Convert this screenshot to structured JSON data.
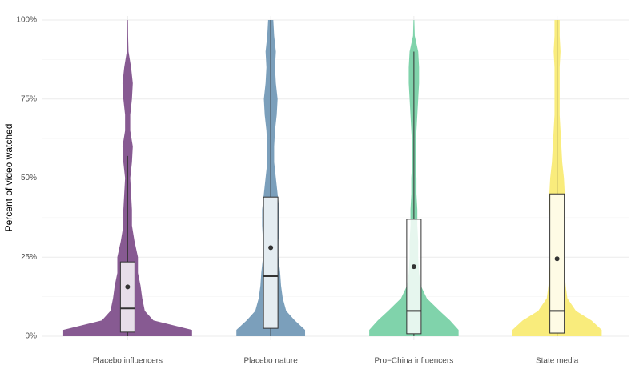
{
  "chart_data": {
    "type": "violin",
    "y_label": "Percent of video watched",
    "categories": [
      "Placebo influencers",
      "Placebo nature",
      "Pro−China influencers",
      "State media"
    ],
    "ylim": [
      0,
      100
    ],
    "yticks": [
      {
        "value": 0,
        "label": "0%"
      },
      {
        "value": 25,
        "label": "25%"
      },
      {
        "value": 50,
        "label": "50%"
      },
      {
        "value": 75,
        "label": "75%"
      },
      {
        "value": 100,
        "label": "100%"
      }
    ],
    "minor_yticks": [
      12.5,
      37.5,
      62.5,
      87.5
    ],
    "grid": true,
    "density_grid": [
      0,
      2,
      5,
      8,
      12,
      16,
      20,
      25,
      30,
      35,
      40,
      45,
      50,
      55,
      60,
      65,
      70,
      75,
      80,
      85,
      90,
      95,
      100
    ],
    "groups": [
      {
        "color": "#875a92",
        "density": [
          75,
          75,
          30,
          20,
          17,
          15,
          12,
          12,
          8,
          5,
          5,
          4,
          3,
          5,
          6,
          3,
          3,
          5,
          6,
          4,
          1,
          0.5,
          0.3
        ],
        "whisker_low": 0,
        "q1": 1.3,
        "median": 8.8,
        "q3": 23.5,
        "whisker_high": 57,
        "mean": 15.6
      },
      {
        "color": "#7b9fbb",
        "density": [
          40,
          40,
          28,
          18,
          14,
          12,
          11,
          9,
          9,
          10,
          10,
          8,
          6,
          4,
          4,
          5,
          7,
          8,
          6,
          5,
          6,
          4,
          3
        ],
        "whisker_low": 0,
        "q1": 2.5,
        "median": 19,
        "q3": 44,
        "whisker_high": 100,
        "mean": 28
      },
      {
        "color": "#80d3ab",
        "density": [
          52,
          52,
          42,
          30,
          15,
          8,
          6,
          5,
          5,
          4,
          4,
          3,
          3,
          2,
          2,
          3,
          4,
          5,
          6,
          6,
          5,
          1,
          0.5
        ],
        "whisker_low": 0,
        "q1": 0.8,
        "median": 8,
        "q3": 37,
        "whisker_high": 90,
        "mean": 22
      },
      {
        "color": "#f9ec7c",
        "density": [
          52,
          52,
          40,
          22,
          12,
          10,
          9,
          8,
          8,
          8,
          9,
          9,
          8,
          6,
          5,
          4,
          3,
          3,
          3,
          3,
          4,
          3,
          3
        ],
        "whisker_low": 0,
        "q1": 1,
        "median": 8,
        "q3": 45,
        "whisker_high": 100,
        "mean": 24.5
      }
    ]
  }
}
